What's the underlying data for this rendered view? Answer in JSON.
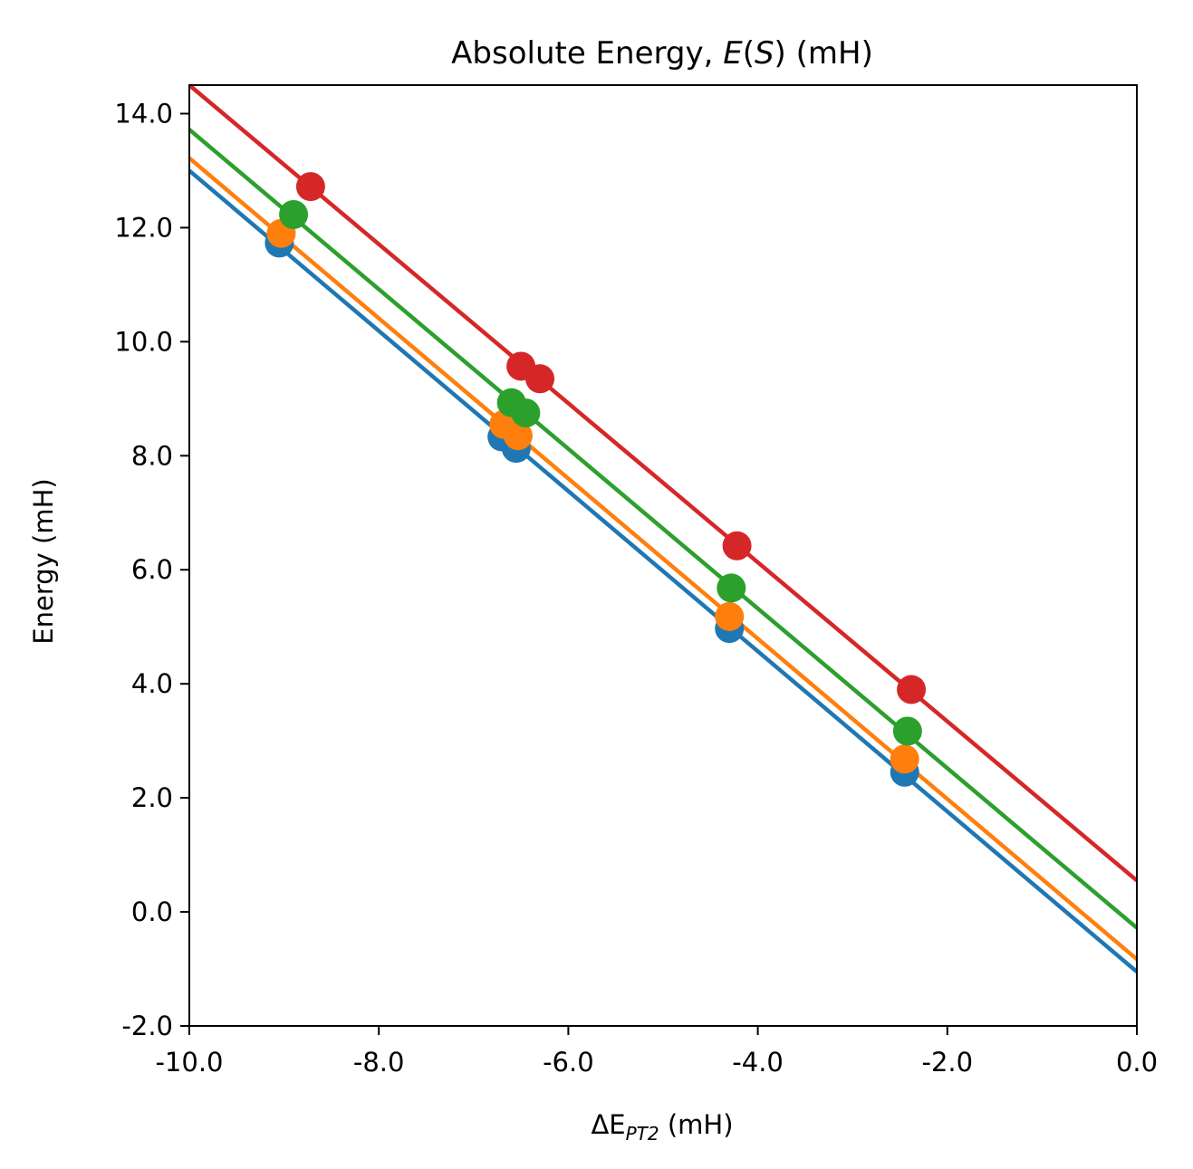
{
  "chart_data": {
    "type": "line",
    "title": {
      "prefix": "Absolute Energy, ",
      "func": "E",
      "open": "(",
      "arg": "S",
      "close": ")",
      "suffix": " (mH)"
    },
    "xlabel": {
      "main": "ΔE",
      "sub": "PT2",
      "unit": " (mH)"
    },
    "ylabel": "Energy (mH)",
    "xlim": [
      -10.0,
      0.0
    ],
    "ylim": [
      -2.0,
      14.5
    ],
    "xticks": [
      -10.0,
      -8.0,
      -6.0,
      -4.0,
      -2.0,
      0.0
    ],
    "xtick_labels": [
      "-10.0",
      "-8.0",
      "-6.0",
      "-4.0",
      "-2.0",
      "0.0"
    ],
    "yticks": [
      -2.0,
      0.0,
      2.0,
      4.0,
      6.0,
      8.0,
      10.0,
      12.0,
      14.0
    ],
    "ytick_labels": [
      "-2.0",
      "0.0",
      "2.0",
      "4.0",
      "6.0",
      "8.0",
      "10.0",
      "12.0",
      "14.0"
    ],
    "grid": false,
    "legend": "none",
    "series": [
      {
        "color": "#1f77b4",
        "fit_line": {
          "x": [
            -10.0,
            0.0
          ],
          "y": [
            13.0,
            -1.05
          ]
        },
        "points": [
          {
            "x": -9.05,
            "y": 11.73
          },
          {
            "x": -6.7,
            "y": 8.33
          },
          {
            "x": -6.55,
            "y": 8.13
          },
          {
            "x": -4.3,
            "y": 4.97
          },
          {
            "x": -2.45,
            "y": 2.45
          }
        ]
      },
      {
        "color": "#ff7f0e",
        "fit_line": {
          "x": [
            -10.0,
            0.0
          ],
          "y": [
            13.22,
            -0.83
          ]
        },
        "points": [
          {
            "x": -9.03,
            "y": 11.9
          },
          {
            "x": -6.68,
            "y": 8.55
          },
          {
            "x": -6.53,
            "y": 8.35
          },
          {
            "x": -4.3,
            "y": 5.18
          },
          {
            "x": -2.45,
            "y": 2.68
          }
        ]
      },
      {
        "color": "#2ca02c",
        "fit_line": {
          "x": [
            -10.0,
            0.0
          ],
          "y": [
            13.72,
            -0.28
          ]
        },
        "points": [
          {
            "x": -8.9,
            "y": 12.23
          },
          {
            "x": -6.6,
            "y": 8.93
          },
          {
            "x": -6.45,
            "y": 8.75
          },
          {
            "x": -4.28,
            "y": 5.68
          },
          {
            "x": -2.42,
            "y": 3.17
          }
        ]
      },
      {
        "color": "#d62728",
        "fit_line": {
          "x": [
            -10.0,
            0.0
          ],
          "y": [
            14.5,
            0.55
          ]
        },
        "points": [
          {
            "x": -8.72,
            "y": 12.72
          },
          {
            "x": -6.5,
            "y": 9.57
          },
          {
            "x": -6.3,
            "y": 9.35
          },
          {
            "x": -4.22,
            "y": 6.42
          },
          {
            "x": -2.38,
            "y": 3.9
          }
        ]
      }
    ]
  }
}
